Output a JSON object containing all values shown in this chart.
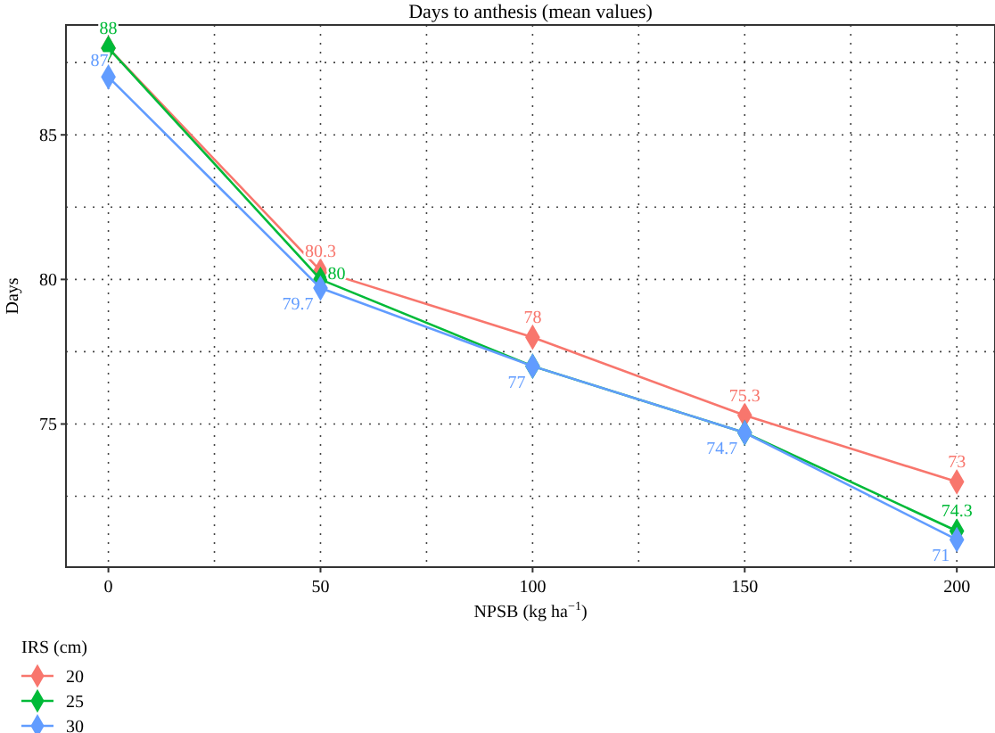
{
  "chart_data": {
    "type": "line",
    "title": "Days to anthesis (mean values)",
    "xlabel": "NPSB (kg ha$^{−1}$)",
    "ylabel": "Days",
    "legend_title": "IRS (cm)",
    "x": [
      0,
      50,
      100,
      150,
      200
    ],
    "annotations": [
      {
        "text": "74.3",
        "x": 200,
        "y": 71.3
      }
    ],
    "series": [
      {
        "name": "20",
        "color": "#f8766d",
        "values": [
          88,
          80.3,
          78,
          75.3,
          73
        ],
        "value_labels": [
          null,
          "80.3",
          "78",
          "75.3",
          "73"
        ]
      },
      {
        "name": "25",
        "color": "#00ba38",
        "values": [
          88,
          80,
          77,
          74.7,
          71.3
        ],
        "value_labels": [
          "88",
          "80",
          null,
          null,
          null
        ]
      },
      {
        "name": "30",
        "color": "#619cff",
        "values": [
          87,
          79.7,
          77,
          74.7,
          71
        ],
        "value_labels": [
          "87",
          "79.7",
          "77",
          "74.7",
          "71"
        ]
      }
    ],
    "xlim": [
      -10,
      209
    ],
    "ylim": [
      70.05,
      88.8
    ],
    "xticks": [
      0,
      {
        "value": 25,
        "label": null
      },
      50,
      {
        "value": 75,
        "label": null
      },
      100,
      {
        "value": 125,
        "label": null
      },
      150,
      {
        "value": 175,
        "label": null
      },
      200
    ],
    "yticks": [
      {
        "value": 72.5,
        "label": null
      },
      75,
      {
        "value": 77.5,
        "label": null
      },
      80,
      {
        "value": 82.5,
        "label": null
      },
      85,
      {
        "value": 87.5,
        "label": null
      }
    ],
    "grid": true,
    "legend": "bottom left",
    "marker": "diamond",
    "line_style": "solid"
  }
}
